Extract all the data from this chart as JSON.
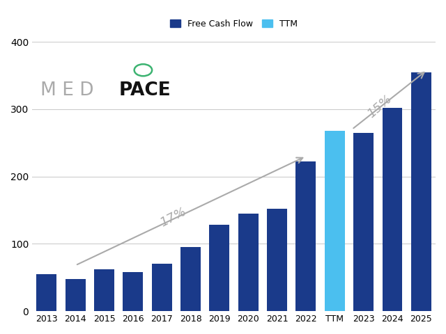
{
  "categories": [
    "2013",
    "2014",
    "2015",
    "2016",
    "2017",
    "2018",
    "2019",
    "2020",
    "2021",
    "2022",
    "TTM",
    "2023",
    "2024",
    "2025"
  ],
  "values": [
    55,
    48,
    62,
    58,
    70,
    95,
    128,
    145,
    152,
    222,
    268,
    265,
    302,
    355
  ],
  "bar_colors": [
    "#1a3a8a",
    "#1a3a8a",
    "#1a3a8a",
    "#1a3a8a",
    "#1a3a8a",
    "#1a3a8a",
    "#1a3a8a",
    "#1a3a8a",
    "#1a3a8a",
    "#1a3a8a",
    "#4bbfef",
    "#1a3a8a",
    "#1a3a8a",
    "#1a3a8a"
  ],
  "ttm_color": "#4bbfef",
  "dark_blue": "#1a3a8a",
  "ylim": [
    0,
    400
  ],
  "yticks": [
    0,
    100,
    200,
    300,
    400
  ],
  "legend_fcf_label": "Free Cash Flow",
  "legend_ttm_label": "TTM",
  "arrow1_text": "17%",
  "arrow2_text": "15%",
  "background_color": "#ffffff",
  "grid_color": "#cccccc",
  "logo_circle_color": "#3cb371",
  "arrow_color": "#aaaaaa"
}
